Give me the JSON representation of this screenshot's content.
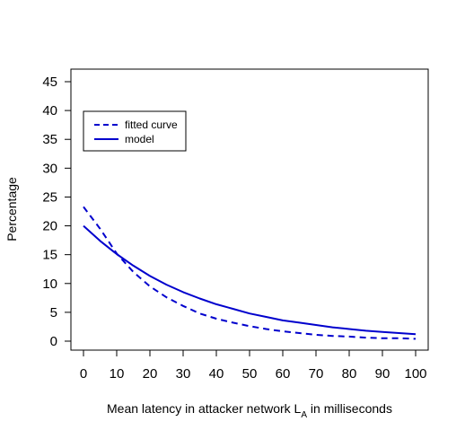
{
  "chart_data": {
    "type": "line",
    "title": "",
    "xlabel": "Mean latency in attacker network L",
    "xlabel_subscript": "A",
    "xlabel_suffix": " in milliseconds",
    "ylabel": "Percentage",
    "xlim": [
      0,
      100
    ],
    "ylim": [
      0,
      45
    ],
    "xticks": [
      0,
      10,
      20,
      30,
      40,
      50,
      60,
      70,
      80,
      90,
      100
    ],
    "yticks": [
      0,
      5,
      10,
      15,
      20,
      25,
      30,
      35,
      40,
      45
    ],
    "grid": false,
    "legend_position": "top-left",
    "series": [
      {
        "name": "fitted curve",
        "style": "dashed",
        "color": "#0000CD",
        "x": [
          0,
          5,
          10,
          15,
          20,
          25,
          30,
          35,
          40,
          45,
          50,
          55,
          60,
          65,
          70,
          75,
          80,
          85,
          90,
          95,
          100
        ],
        "values": [
          23.3,
          19.5,
          15.2,
          12.0,
          9.5,
          7.6,
          6.1,
          4.8,
          3.9,
          3.2,
          2.6,
          2.1,
          1.7,
          1.4,
          1.1,
          0.9,
          0.8,
          0.6,
          0.5,
          0.5,
          0.4
        ]
      },
      {
        "name": "model",
        "style": "solid",
        "color": "#0000CD",
        "x": [
          0,
          5,
          10,
          15,
          20,
          25,
          30,
          35,
          40,
          45,
          50,
          55,
          60,
          65,
          70,
          75,
          80,
          85,
          90,
          95,
          100
        ],
        "values": [
          20.0,
          17.4,
          15.1,
          13.1,
          11.3,
          9.8,
          8.5,
          7.4,
          6.4,
          5.6,
          4.8,
          4.2,
          3.6,
          3.2,
          2.8,
          2.4,
          2.1,
          1.8,
          1.6,
          1.4,
          1.2
        ]
      }
    ]
  }
}
